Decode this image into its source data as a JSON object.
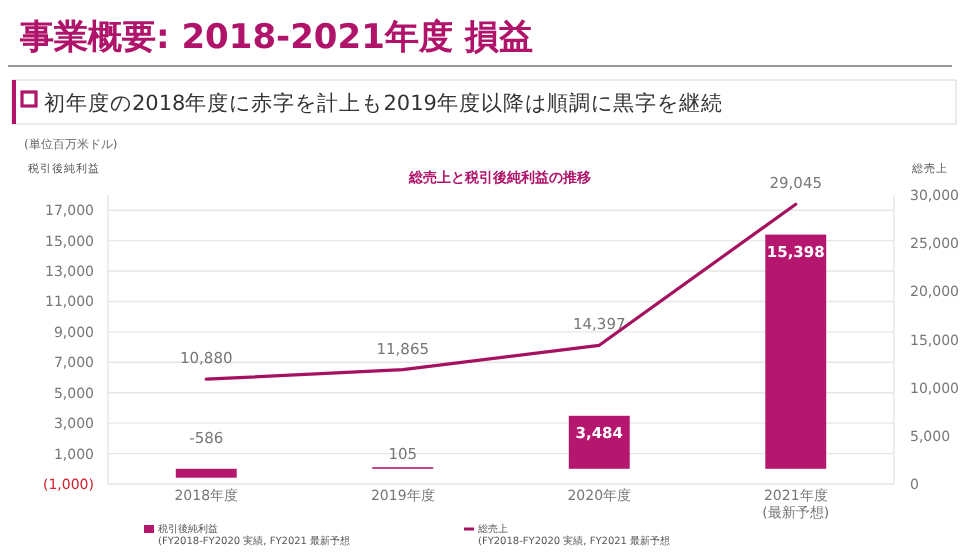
{
  "chart_data": {
    "type": "bar",
    "title": "事業概要: 2018-2021年度 損益",
    "subtitle": "初年度の2018年度に赤字を計上も2019年度以降は順調に黒字を継続",
    "ylabel": "税引後純利益",
    "y2label": "総売上",
    "annotations": [
      "総売上と税引後純利益の推移",
      "(単位百万米ドル)"
    ],
    "categories": [
      "2018年度",
      "2019年度",
      "2020年度",
      "2021年度\n(最新予想)"
    ],
    "series": [
      {
        "name": "税引後純利益\n(FY2018-FY2020 実績, FY2021 最新予想",
        "color": "#b5166e",
        "values": [
          -586,
          105,
          3484,
          15398
        ],
        "value_labels": [
          "-586",
          "105",
          "3,484",
          "15,398"
        ]
      },
      {
        "name": "総売上\n(FY2018-FY2020 実績, FY2021 最新予想",
        "type": "line",
        "axis": "y2",
        "color": "#a3115f",
        "values": [
          10880,
          11865,
          14397,
          29045
        ],
        "value_labels": [
          "10,880",
          "11,865",
          "14,397",
          "29,045"
        ]
      }
    ],
    "ylim": [
      -1000,
      18000
    ],
    "yticks": [
      {
        "value": -1000,
        "label": "(1,000)"
      },
      {
        "value": 1000,
        "label": "1,000"
      },
      {
        "value": 3000,
        "label": "3,000"
      },
      {
        "value": 5000,
        "label": "5,000"
      },
      {
        "value": 7000,
        "label": "7,000"
      },
      {
        "value": 9000,
        "label": "9,000"
      },
      {
        "value": 11000,
        "label": "11,000"
      },
      {
        "value": 13000,
        "label": "13,000"
      },
      {
        "value": 15000,
        "label": "15,000"
      },
      {
        "value": 17000,
        "label": "17,000"
      }
    ],
    "y2lim": [
      0,
      30000
    ],
    "y2ticks": [
      0,
      {
        "value": 5000,
        "label": "5,000"
      },
      {
        "value": 10000,
        "label": "10,000"
      },
      {
        "value": 15000,
        "label": "15,000"
      },
      {
        "value": 20000,
        "label": "20,000"
      },
      {
        "value": 25000,
        "label": "25,000"
      },
      {
        "value": 30000,
        "label": "30,000"
      }
    ],
    "grid": "y",
    "legend": "bottom",
    "line_style": "solid"
  }
}
